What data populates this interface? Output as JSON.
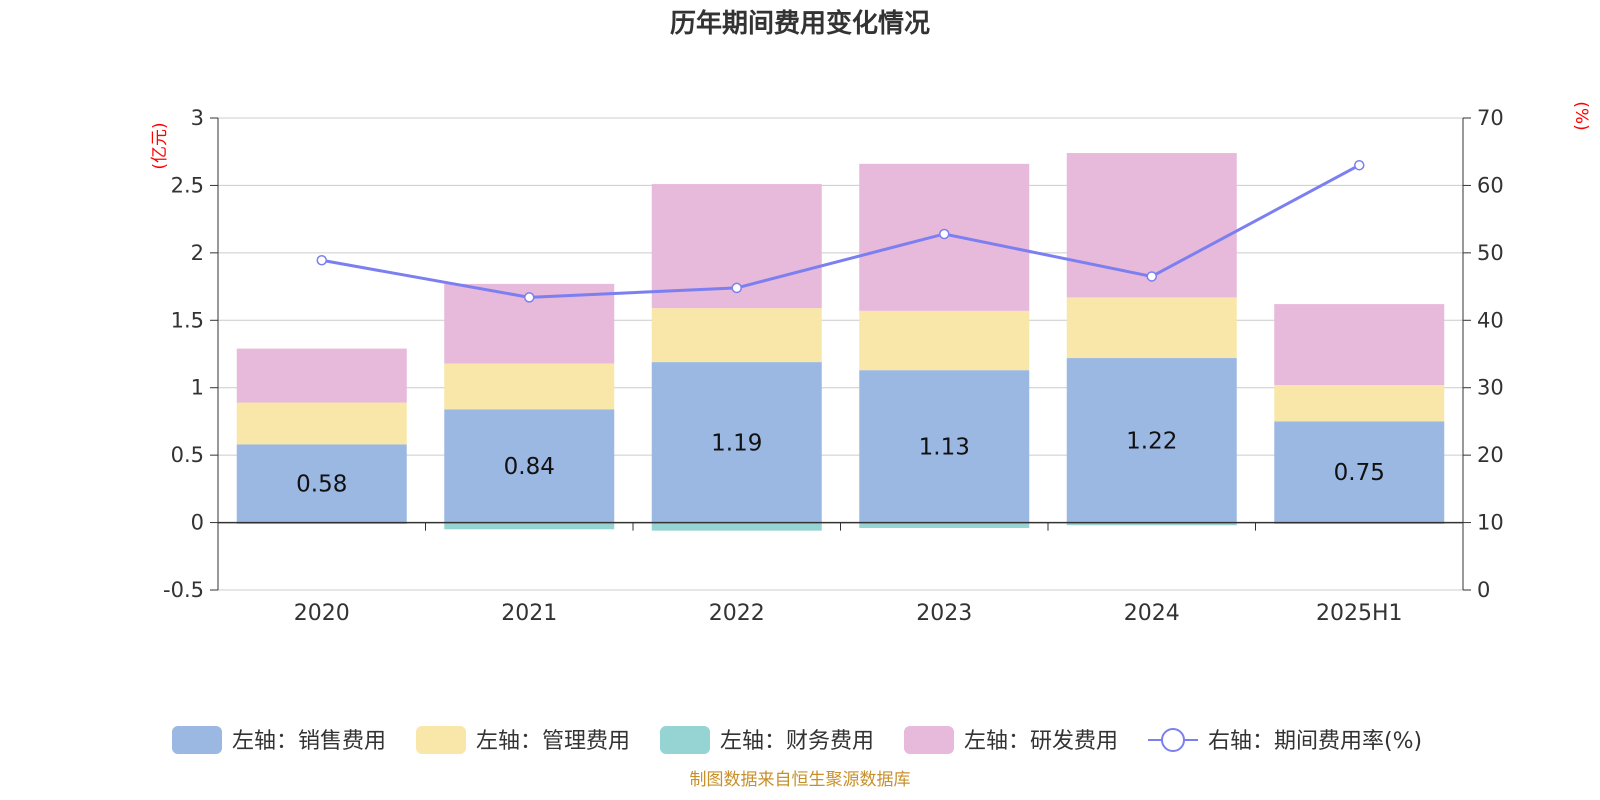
{
  "chart_data": {
    "type": "bar",
    "title": "历年期间费用变化情况",
    "categories": [
      "2020",
      "2021",
      "2022",
      "2023",
      "2024",
      "2025H1"
    ],
    "left_axis": {
      "unit": "(亿元)",
      "ylim": [
        -0.5,
        3
      ],
      "ticks": [
        "-0.5",
        "0",
        "0.5",
        "1",
        "1.5",
        "2",
        "2.5",
        "3"
      ]
    },
    "right_axis": {
      "unit": "(%)",
      "ylim": [
        0,
        70
      ],
      "ticks": [
        "0",
        "10",
        "20",
        "30",
        "40",
        "50",
        "60",
        "70"
      ]
    },
    "grid": true,
    "legend_position": "bottom",
    "series": [
      {
        "name": "左轴：销售费用",
        "axis": "left",
        "kind": "bar",
        "color": "#9bb8e2",
        "values": [
          0.58,
          0.84,
          1.19,
          1.13,
          1.22,
          0.75
        ],
        "labels": [
          "0.58",
          "0.84",
          "1.19",
          "1.13",
          "1.22",
          "0.75"
        ]
      },
      {
        "name": "左轴：管理费用",
        "axis": "left",
        "kind": "bar",
        "color": "#f8e7a8",
        "values": [
          0.31,
          0.34,
          0.4,
          0.44,
          0.45,
          0.27
        ]
      },
      {
        "name": "左轴：财务费用",
        "axis": "left",
        "kind": "bar",
        "color": "#96d4d4",
        "values": [
          -0.01,
          -0.05,
          -0.06,
          -0.04,
          -0.02,
          -0.01
        ]
      },
      {
        "name": "左轴：研发费用",
        "axis": "left",
        "kind": "bar",
        "color": "#e7b9da",
        "values": [
          0.4,
          0.59,
          0.92,
          1.09,
          1.07,
          0.6
        ]
      },
      {
        "name": "右轴：期间费用率(%)",
        "axis": "right",
        "kind": "line",
        "color": "#7b7ff0",
        "values": [
          48.9,
          43.4,
          44.8,
          52.8,
          46.5,
          63.0
        ]
      }
    ],
    "source": "制图数据来自恒生聚源数据库"
  }
}
